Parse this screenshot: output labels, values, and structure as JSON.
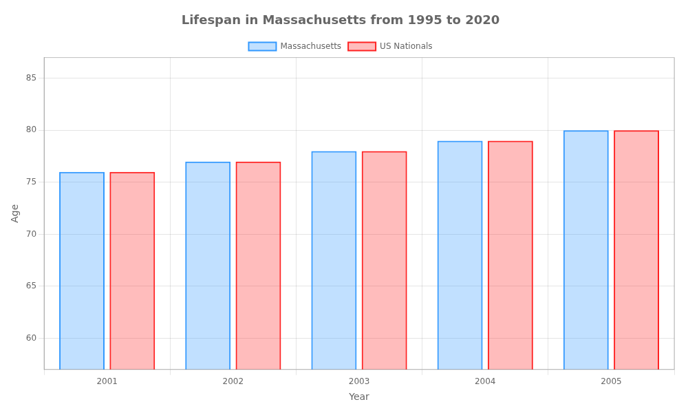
{
  "chart_data": {
    "type": "bar",
    "title": "Lifespan in Massachusetts from 1995 to 2020",
    "x_label": "Year",
    "y_label": "Age",
    "categories": [
      "2001",
      "2002",
      "2003",
      "2004",
      "2005"
    ],
    "series": [
      {
        "name": "Massachusetts",
        "color": "#3399ff",
        "values": [
          76,
          77,
          78,
          79,
          80
        ]
      },
      {
        "name": "US Nationals",
        "color": "#ff2222",
        "values": [
          76,
          77,
          78,
          79,
          80
        ]
      }
    ],
    "ylim": [
      57,
      87
    ],
    "yticks": [
      60,
      65,
      70,
      75,
      80,
      85
    ],
    "grid": true,
    "legend": "upper center"
  }
}
